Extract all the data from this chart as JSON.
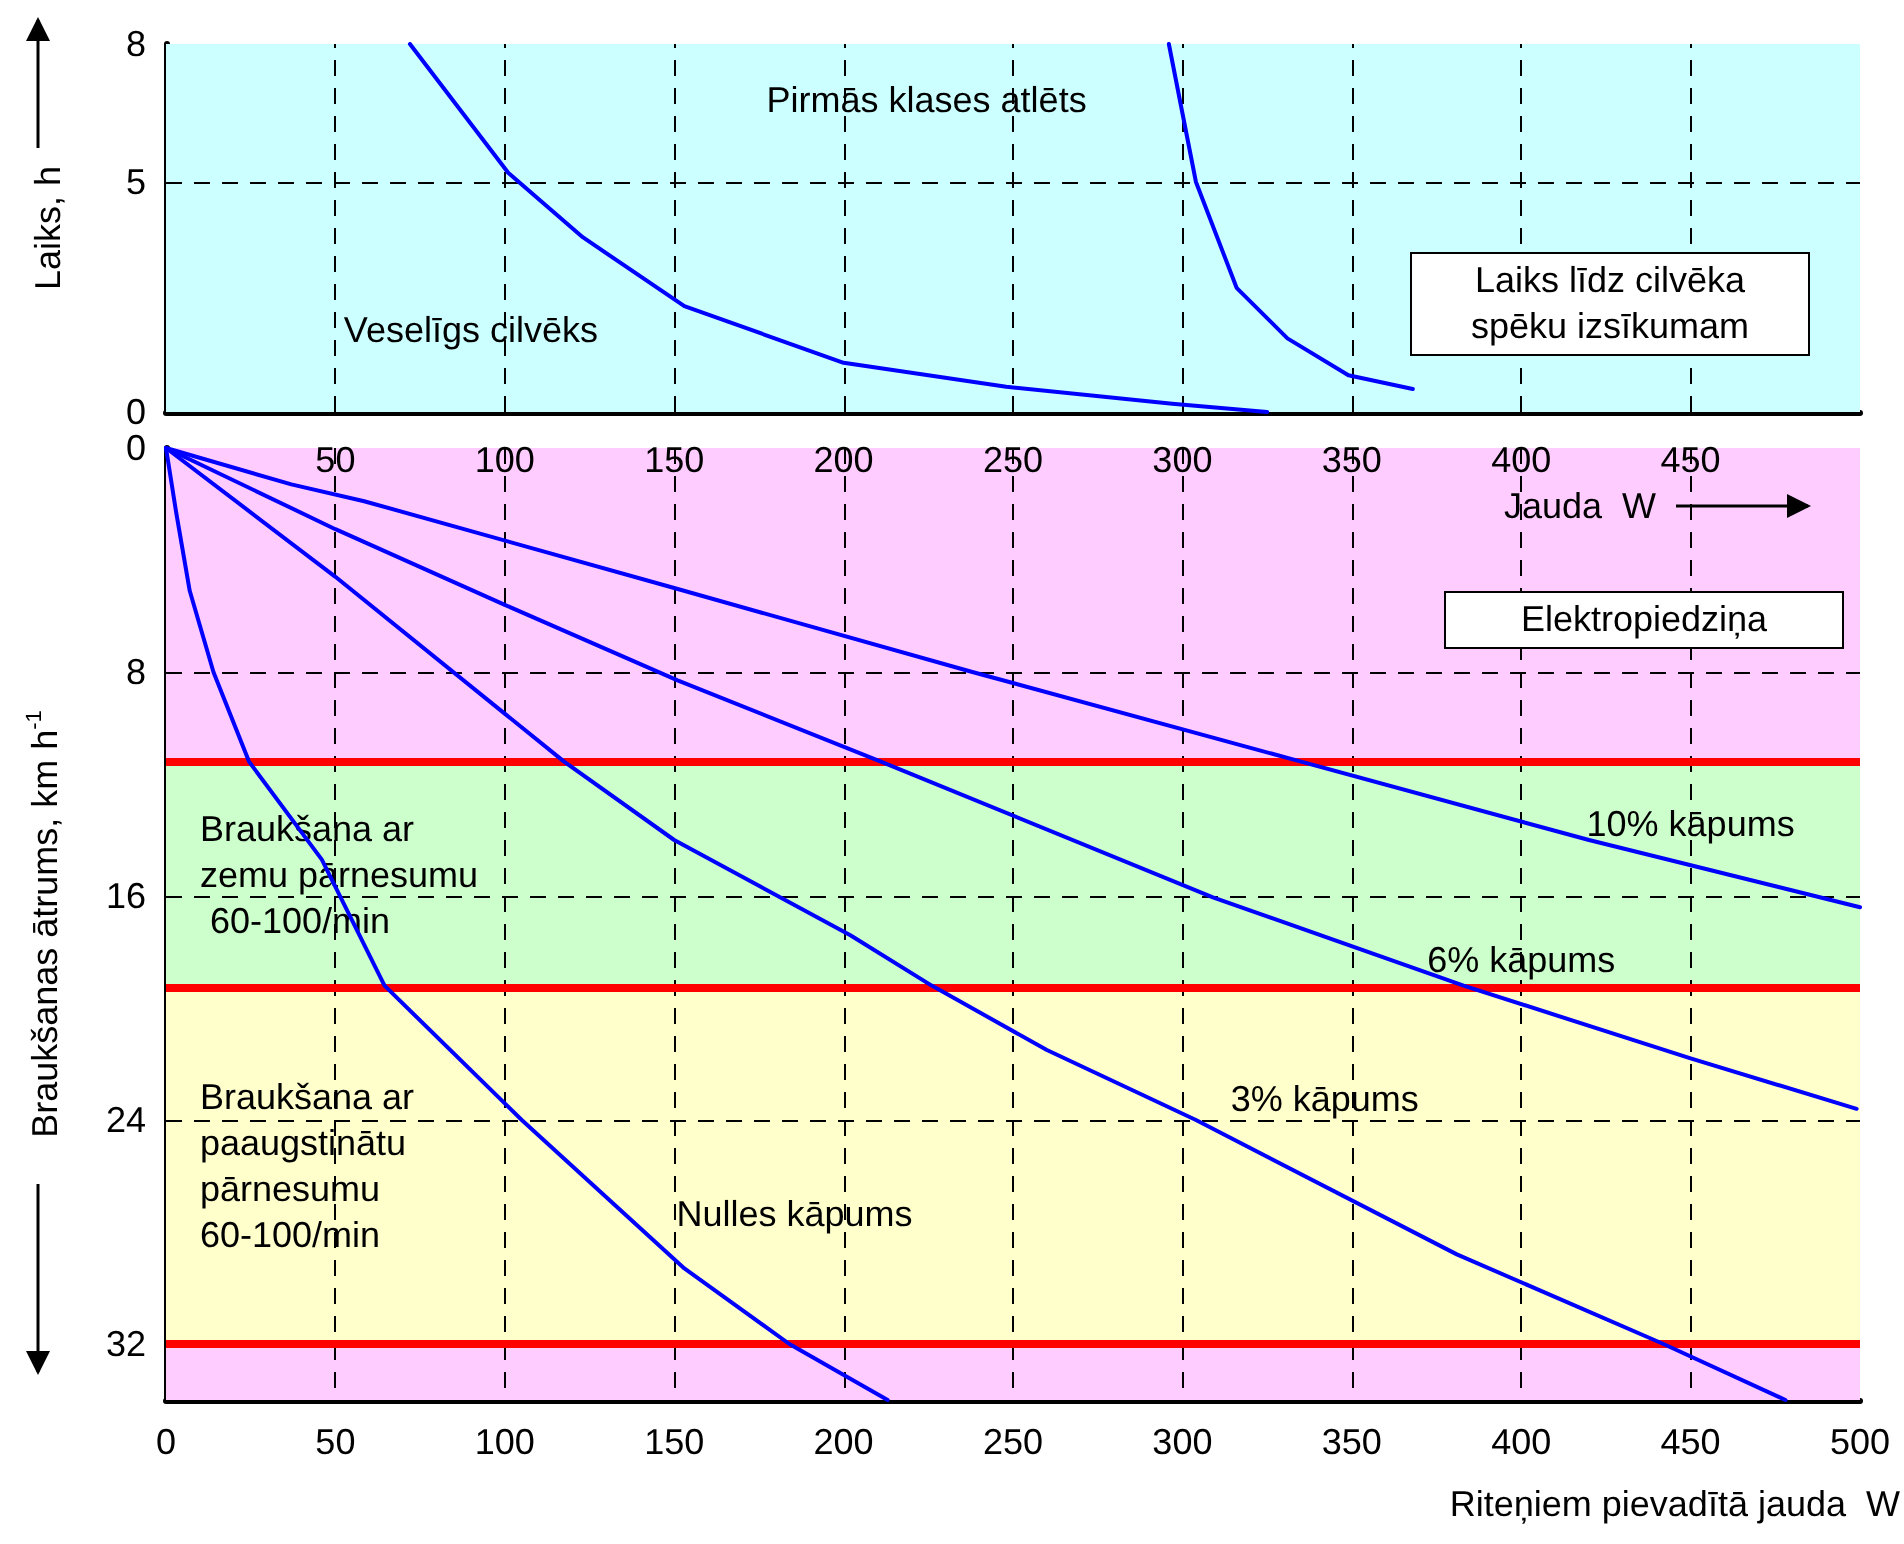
{
  "chart_data": [
    {
      "type": "line",
      "ylabel": "Laiks, h",
      "xlim": [
        0,
        500
      ],
      "xticks": [
        0,
        50,
        100,
        150,
        200,
        250,
        300,
        350,
        400,
        450,
        500
      ],
      "ylim": [
        0,
        8
      ],
      "yticks": [
        0,
        5,
        8
      ],
      "tick_labels": "y",
      "grid": true,
      "series": [
        {
          "color": "#0000ff",
          "x": [
            72,
            101,
            123,
            153,
            200,
            248,
            297,
            325
          ],
          "values": [
            8,
            5.2,
            3.8,
            2.3,
            1.07,
            0.55,
            0.18,
            0
          ]
        },
        {
          "color": "#0000ff",
          "x": [
            296,
            304,
            316,
            331,
            349,
            368
          ],
          "values": [
            8,
            5,
            2.7,
            1.6,
            0.8,
            0.5
          ]
        }
      ],
      "bands": [
        {
          "axis": "y",
          "from": 0,
          "to": 8,
          "color": "#ccffff",
          "label": "Laiks līdz cilvēka spēku izsīkumam"
        }
      ],
      "annotations": [
        "Pirmās klases atlēts",
        "Veselīgs cilvēks"
      ]
    },
    {
      "type": "line",
      "ylabel": "Braukšanas ātrums, km h$^{-1}$",
      "xlabel": "Riteņiem pievadītā jauda  W",
      "x2label": "Jauda  W",
      "xlim": [
        0,
        500
      ],
      "xticks": [
        0,
        50,
        100,
        150,
        200,
        250,
        300,
        350,
        400,
        450,
        500
      ],
      "x2lim": [
        0,
        500
      ],
      "x2ticks": [
        50,
        100,
        150,
        200,
        250,
        300,
        350,
        400,
        450
      ],
      "ylim": [
        34,
        0
      ],
      "yticks": [
        0,
        8,
        16,
        24,
        32
      ],
      "grid": true,
      "series": [
        {
          "color": "#0000ff",
          "x": [
            0,
            37,
            58.5,
            150,
            238,
            335,
            420,
            500
          ],
          "values": [
            0,
            1.3,
            1.9,
            5,
            8,
            11.2,
            14,
            16.4
          ]
        },
        {
          "color": "#0000ff",
          "x": [
            0,
            50,
            100,
            151,
            211,
            309,
            383,
            450,
            499
          ],
          "values": [
            0,
            2.9,
            5.6,
            8.3,
            11.2,
            16.05,
            19.2,
            21.8,
            23.6
          ]
        },
        {
          "color": "#0000ff",
          "x": [
            0,
            50,
            99.6,
            117.5,
            150,
            202,
            226,
            260,
            304,
            381,
            442,
            478
          ],
          "values": [
            0,
            4.6,
            9.45,
            11.2,
            14,
            17.4,
            19.2,
            21.5,
            24,
            28.8,
            32,
            34
          ]
        },
        {
          "color": "#0000ff",
          "x": [
            0,
            3,
            7,
            14,
            24.5,
            46,
            64.5,
            105,
            153,
            184,
            213
          ],
          "values": [
            0,
            2.3,
            5.1,
            8,
            11.2,
            14.7,
            19.2,
            24,
            29.3,
            32,
            34
          ]
        }
      ],
      "bands": [
        {
          "axis": "y",
          "from": 0,
          "to": 11.2,
          "color": "#ffccff",
          "label": "Elektropiedziņa"
        },
        {
          "axis": "y",
          "from": 11.2,
          "to": 19.3,
          "color": "#ccffcc",
          "label": "Braukšana ar zemu pārnesumu 60-100/min"
        },
        {
          "axis": "y",
          "from": 19.3,
          "to": 32,
          "color": "#ffffcc",
          "label": "Braukšana ar paaugstinātu pārnesumu 60-100/min"
        },
        {
          "axis": "y",
          "from": 32,
          "to": 34,
          "color": "#ffccff"
        }
      ],
      "ref_lines": [
        {
          "axis": "y",
          "value": 11.2,
          "color": "#ff0000"
        },
        {
          "axis": "y",
          "value": 19.3,
          "color": "#ff0000"
        },
        {
          "axis": "y",
          "value": 32,
          "color": "#ff0000"
        }
      ],
      "annotations": [
        "10% kāpums",
        "6% kāpums",
        "3% kāpums",
        "Nulles kāpums"
      ]
    }
  ]
}
